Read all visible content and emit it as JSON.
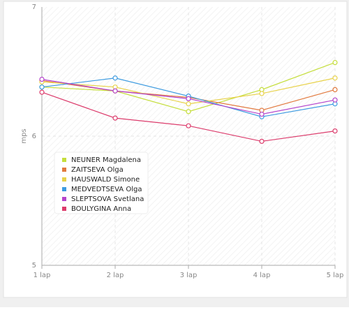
{
  "chart_data": {
    "type": "line",
    "y_label": "mps",
    "categories": [
      "1 lap",
      "2 lap",
      "3 lap",
      "4 lap",
      "5 lap"
    ],
    "ylim": [
      5,
      7
    ],
    "yticks": [
      5,
      6,
      7
    ],
    "grid": true,
    "series": [
      {
        "name": "NEUNER Magdalena",
        "color": "#c5de3c",
        "values": [
          6.38,
          6.35,
          6.19,
          6.36,
          6.57
        ]
      },
      {
        "name": "ZAITSEVA Olga",
        "color": "#e27a3f",
        "values": [
          6.43,
          6.35,
          6.3,
          6.2,
          6.36
        ]
      },
      {
        "name": "HAUSWALD Simone",
        "color": "#e8d24a",
        "values": [
          6.42,
          6.38,
          6.25,
          6.33,
          6.45
        ]
      },
      {
        "name": "MEDVEDTSEVA Olga",
        "color": "#3d9be0",
        "values": [
          6.38,
          6.45,
          6.31,
          6.15,
          6.25
        ]
      },
      {
        "name": "SLEPTSOVA Svetlana",
        "color": "#b544cc",
        "values": [
          6.44,
          6.35,
          6.29,
          6.17,
          6.28
        ]
      },
      {
        "name": "BOULYGINA Anna",
        "color": "#dc3c6c",
        "values": [
          6.34,
          6.14,
          6.08,
          5.96,
          6.04
        ]
      }
    ]
  }
}
